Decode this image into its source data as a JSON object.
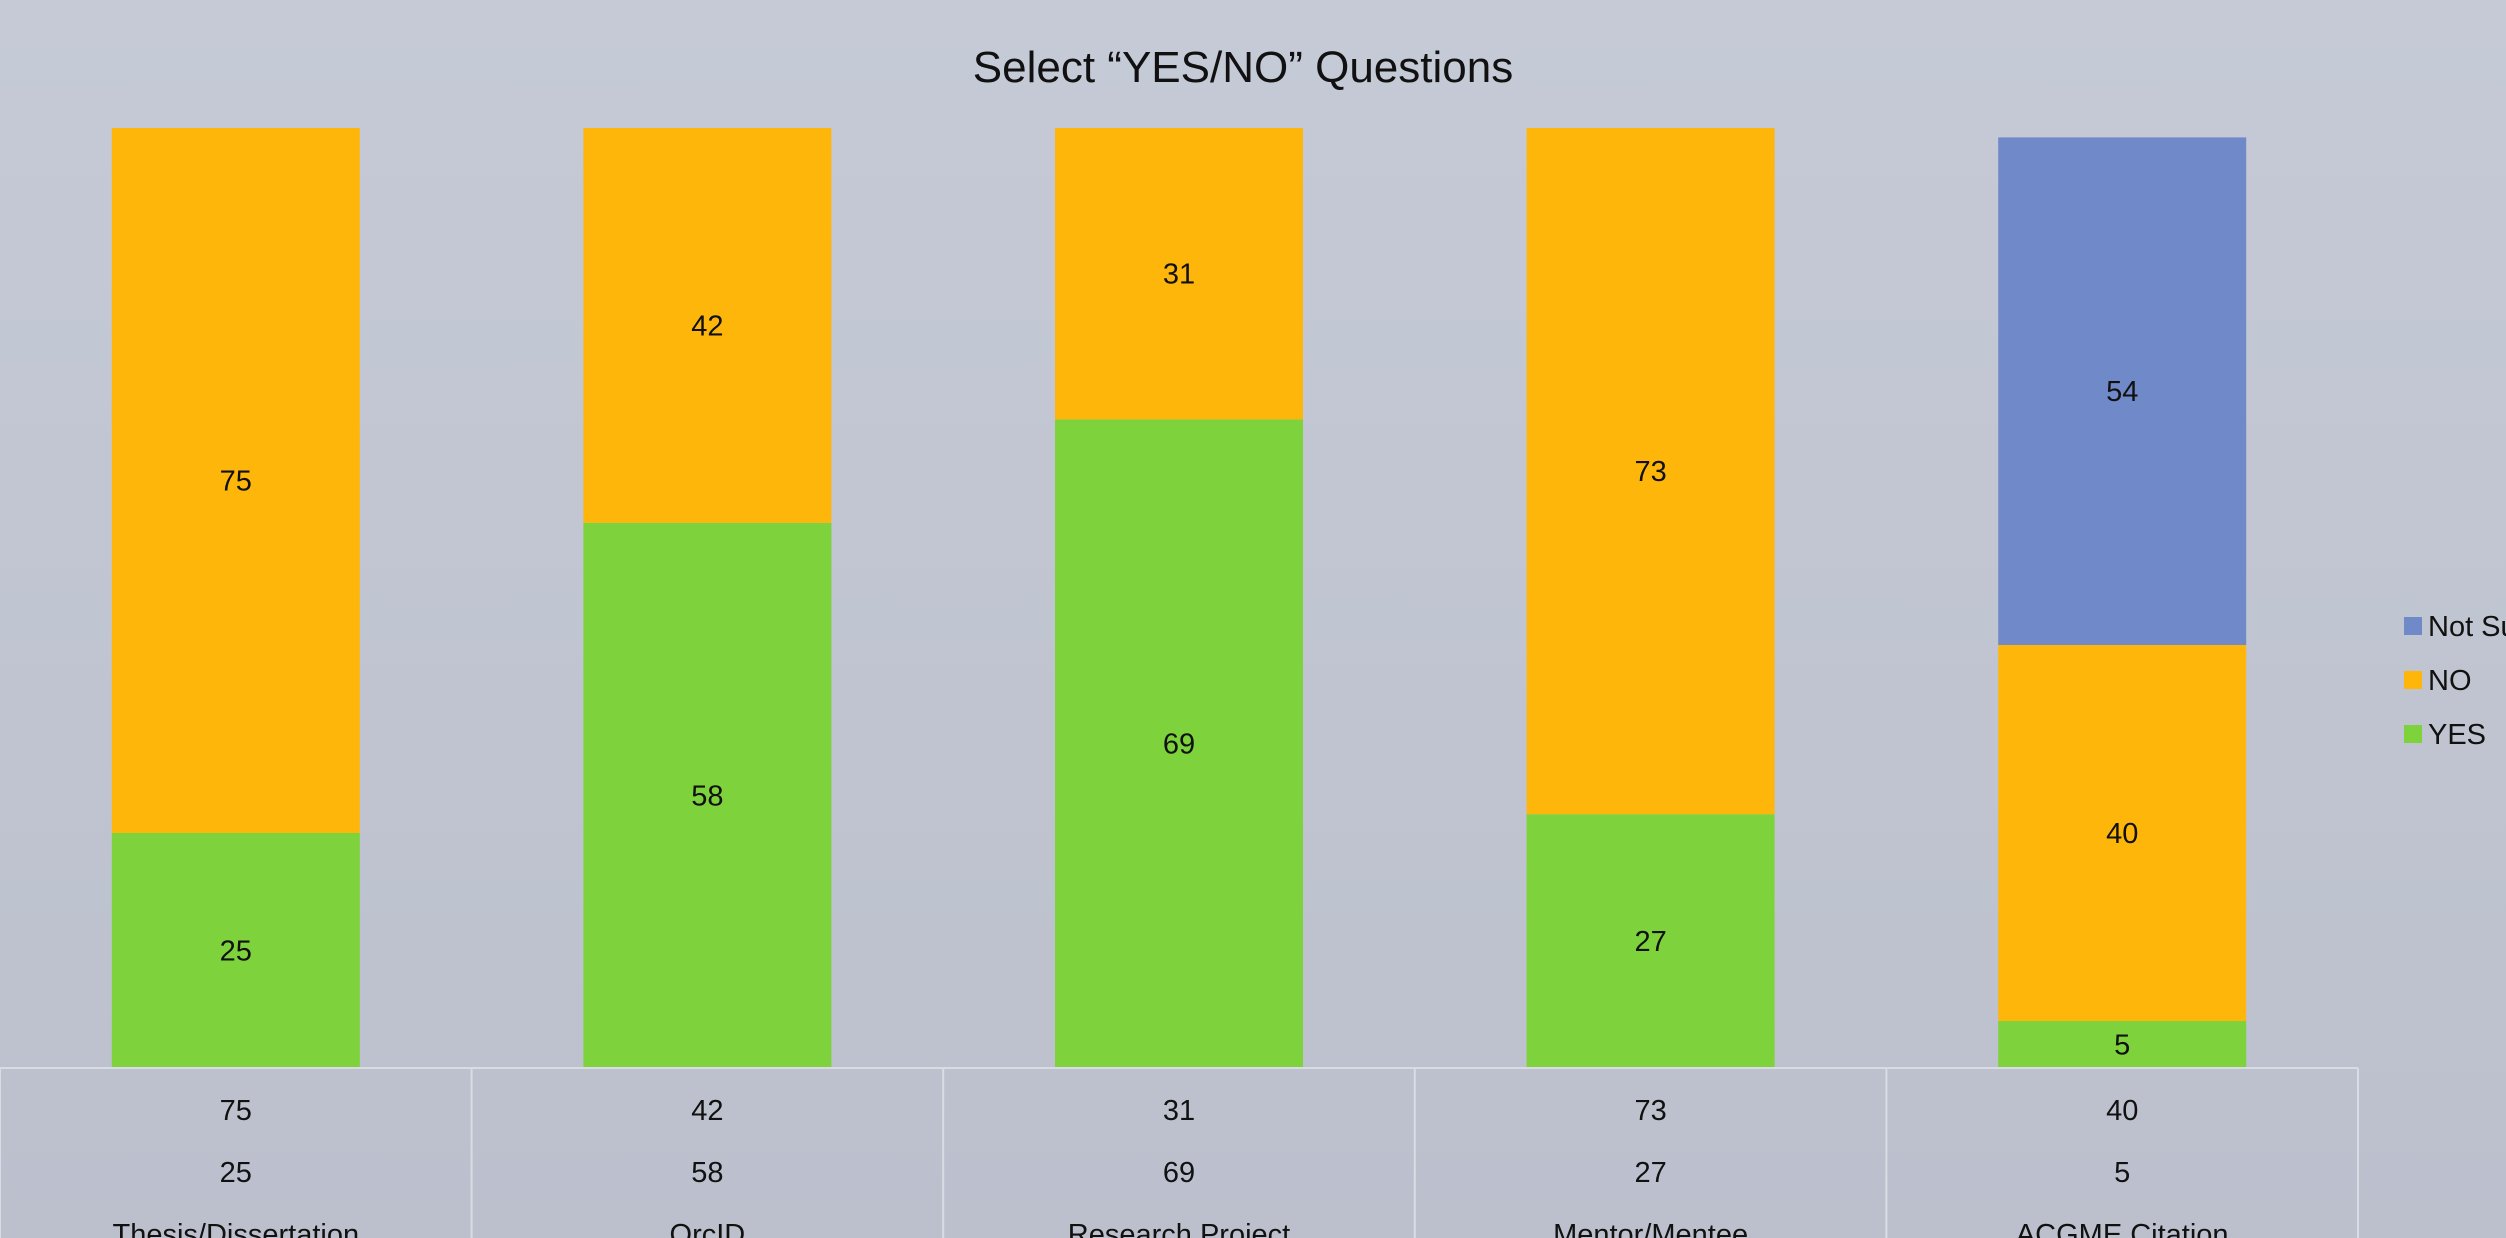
{
  "chart_data": {
    "type": "bar",
    "stacked": true,
    "normalized_percent": true,
    "title": "Select “YES/NO” Questions",
    "categories": [
      "Thesis/Dissertation",
      "OrcID",
      "Research Project",
      "Mentor/Mentee",
      "ACGME Citation"
    ],
    "series": [
      {
        "name": "YES",
        "values": [
          25,
          58,
          69,
          27,
          5
        ],
        "color": "#7ed23c"
      },
      {
        "name": "NO",
        "values": [
          75,
          42,
          31,
          73,
          40
        ],
        "color": "#ffb60a"
      },
      {
        "name": "Not Su",
        "values": [
          null,
          null,
          null,
          null,
          54
        ],
        "color": "#708ac9"
      }
    ],
    "legend_order": [
      "Not Su",
      "NO",
      "YES"
    ],
    "legend_position": "right",
    "data_table": {
      "rows": [
        {
          "series": "NO",
          "values": [
            "75",
            "42",
            "31",
            "73",
            "40"
          ]
        },
        {
          "series": "YES",
          "values": [
            "25",
            "58",
            "69",
            "27",
            "5"
          ]
        }
      ],
      "category_labels": [
        "Thesis/Dissertation",
        "OrcID",
        "Research Project",
        "Mentor/Mentee",
        "ACGME Citation"
      ]
    },
    "ylim": [
      0,
      100
    ],
    "grid": false
  }
}
